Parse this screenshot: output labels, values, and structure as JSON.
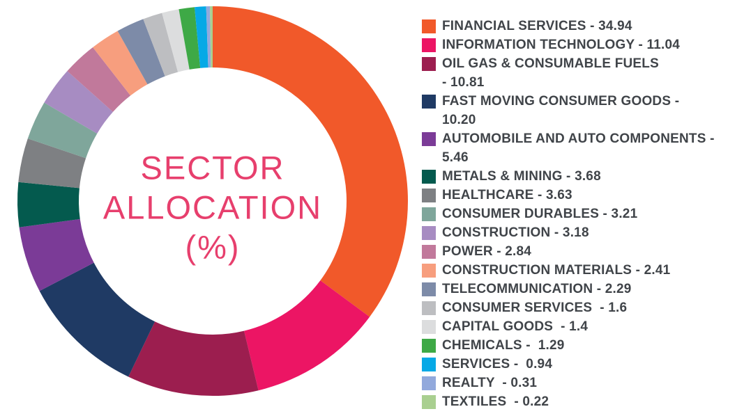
{
  "page": {
    "background_color": "#ffffff"
  },
  "chart": {
    "center_label_lines": [
      "SECTOR",
      "ALLOCATION",
      "(%)"
    ],
    "center_label_color": "#E73F6D"
  },
  "chart_data": {
    "type": "pie",
    "subtype": "donut",
    "title": "SECTOR ALLOCATION (%)",
    "legend_position": "right",
    "start_angle_deg": 0,
    "direction": "clockwise",
    "slices": [
      {
        "label": "FINANCIAL SERVICES",
        "value": 34.94,
        "color": "#F1592A",
        "legend_text": "FINANCIAL SERVICES - 34.94"
      },
      {
        "label": "INFORMATION TECHNOLOGY",
        "value": 11.04,
        "color": "#EC1564",
        "legend_text": "INFORMATION TECHNOLOGY - 11.04"
      },
      {
        "label": "OIL GAS & CONSUMABLE FUELS",
        "value": 10.81,
        "color": "#9C1E4F",
        "legend_text": "OIL GAS & CONSUMABLE FUELS\n- 10.81"
      },
      {
        "label": "FAST MOVING CONSUMER GOODS",
        "value": 10.2,
        "color": "#1F3A64",
        "legend_text": "FAST MOVING CONSUMER GOODS -\n10.20"
      },
      {
        "label": "AUTOMOBILE AND AUTO COMPONENTS",
        "value": 5.46,
        "color": "#7B3B97",
        "legend_text": "AUTOMOBILE AND AUTO COMPONENTS -\n5.46"
      },
      {
        "label": "METALS & MINING",
        "value": 3.68,
        "color": "#045A4E",
        "legend_text": "METALS & MINING - 3.68"
      },
      {
        "label": "HEALTHCARE",
        "value": 3.63,
        "color": "#7E8083",
        "legend_text": "HEALTHCARE - 3.63"
      },
      {
        "label": "CONSUMER DURABLES",
        "value": 3.21,
        "color": "#7FA69B",
        "legend_text": "CONSUMER DURABLES - 3.21"
      },
      {
        "label": "CONSTRUCTION",
        "value": 3.18,
        "color": "#A78CC2",
        "legend_text": "CONSTRUCTION - 3.18"
      },
      {
        "label": "POWER",
        "value": 2.84,
        "color": "#C1799B",
        "legend_text": "POWER - 2.84"
      },
      {
        "label": "CONSTRUCTION MATERIALS",
        "value": 2.41,
        "color": "#F79E7E",
        "legend_text": "CONSTRUCTION MATERIALS - 2.41"
      },
      {
        "label": "TELECOMMUNICATION",
        "value": 2.29,
        "color": "#7D8BA8",
        "legend_text": "TELECOMMUNICATION - 2.29"
      },
      {
        "label": "CONSUMER SERVICES",
        "value": 1.6,
        "color": "#BDBEC1",
        "legend_text": "CONSUMER SERVICES  - 1.6"
      },
      {
        "label": "CAPITAL GOODS",
        "value": 1.4,
        "color": "#DCDDDE",
        "legend_text": "CAPITAL GOODS  - 1.4"
      },
      {
        "label": "CHEMICALS",
        "value": 1.29,
        "color": "#3EA946",
        "legend_text": "CHEMICALS -  1.29"
      },
      {
        "label": "SERVICES",
        "value": 0.94,
        "color": "#06A9E6",
        "legend_text": "SERVICES -  0.94"
      },
      {
        "label": "REALTY",
        "value": 0.31,
        "color": "#92A9DC",
        "legend_text": "REALTY  - 0.31"
      },
      {
        "label": "TEXTILES",
        "value": 0.22,
        "color": "#A9CF90",
        "legend_text": "TEXTILES  - 0.22"
      }
    ]
  }
}
